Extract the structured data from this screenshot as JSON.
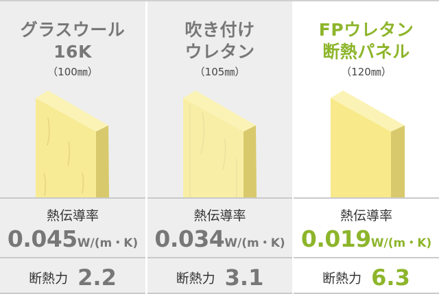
{
  "colors": {
    "accent": "#8db52b",
    "muted_text": "#777777",
    "panel_bg": "#eeeeee",
    "board_front": "#f8eb96",
    "board_top": "#fbf3b6",
    "board_side": "#d8c96c"
  },
  "columns": [
    {
      "title_line1": "グラスウール",
      "title_line2": "16K",
      "thickness": "（100㎜）",
      "conductivity_label": "熱伝導率",
      "conductivity_value": "0.045",
      "conductivity_unit": "W/(m・K)",
      "insulation_label": "断熱力",
      "insulation_value": "2.2",
      "highlight": false
    },
    {
      "title_line1": "吹き付け",
      "title_line2": "ウレタン",
      "thickness": "（105㎜）",
      "conductivity_label": "熱伝導率",
      "conductivity_value": "0.034",
      "conductivity_unit": "W/(m・K)",
      "insulation_label": "断熱力",
      "insulation_value": "3.1",
      "highlight": false
    },
    {
      "title_line1": "FPウレタン",
      "title_line2": "断熱パネル",
      "thickness": "（120㎜）",
      "conductivity_label": "熱伝導率",
      "conductivity_value": "0.019",
      "conductivity_unit": "W/(m・K)",
      "insulation_label": "断熱力",
      "insulation_value": "6.3",
      "highlight": true
    }
  ]
}
